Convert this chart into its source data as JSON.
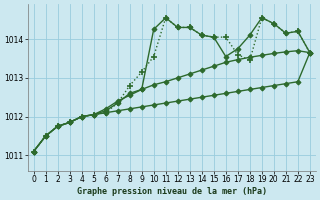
{
  "title": "Graphe pression niveau de la mer (hPa)",
  "bg_color": "#cce8f0",
  "grid_color": "#99ccdd",
  "line_color": "#2d6a2d",
  "xlim": [
    -0.5,
    23.5
  ],
  "ylim": [
    1010.6,
    1014.9
  ],
  "yticks": [
    1011,
    1012,
    1013,
    1014
  ],
  "xticks": [
    0,
    1,
    2,
    3,
    4,
    5,
    6,
    7,
    8,
    9,
    10,
    11,
    12,
    13,
    14,
    15,
    16,
    17,
    18,
    19,
    20,
    21,
    22,
    23
  ],
  "series": [
    {
      "y": [
        1011.1,
        1011.5,
        1011.75,
        1011.85,
        1012.0,
        1012.05,
        1012.1,
        1012.35,
        1012.8,
        1013.15,
        1013.55,
        1014.55,
        1014.3,
        1014.3,
        1014.1,
        1014.05,
        1014.05,
        1013.6,
        1013.45,
        1014.55,
        1014.4,
        1014.15,
        1014.2,
        1013.65
      ],
      "linestyle": "dotted",
      "marker": "+",
      "markersize": 5,
      "linewidth": 1.0,
      "markeredgewidth": 1.2
    },
    {
      "y": [
        1011.1,
        1011.5,
        1011.75,
        1011.85,
        1012.0,
        1012.05,
        1012.15,
        1012.35,
        1012.6,
        1012.7,
        1014.25,
        1014.55,
        1014.3,
        1014.3,
        1014.1,
        1014.05,
        1013.55,
        1013.75,
        1014.1,
        1014.55,
        1014.4,
        1014.15,
        1014.2,
        1013.65
      ],
      "linestyle": "solid",
      "marker": "D",
      "markersize": 2.5,
      "linewidth": 1.0,
      "markeredgewidth": 0.8
    },
    {
      "y": [
        1011.1,
        1011.5,
        1011.75,
        1011.85,
        1012.0,
        1012.05,
        1012.2,
        1012.4,
        1012.55,
        1012.7,
        1012.82,
        1012.9,
        1013.0,
        1013.1,
        1013.2,
        1013.3,
        1013.4,
        1013.47,
        1013.53,
        1013.58,
        1013.63,
        1013.67,
        1013.7,
        1013.65
      ],
      "linestyle": "solid",
      "marker": "D",
      "markersize": 2.5,
      "linewidth": 1.0,
      "markeredgewidth": 0.8
    },
    {
      "y": [
        1011.1,
        1011.5,
        1011.75,
        1011.85,
        1012.0,
        1012.05,
        1012.1,
        1012.15,
        1012.2,
        1012.25,
        1012.3,
        1012.35,
        1012.4,
        1012.45,
        1012.5,
        1012.55,
        1012.6,
        1012.65,
        1012.7,
        1012.75,
        1012.8,
        1012.85,
        1012.9,
        1013.65
      ],
      "linestyle": "solid",
      "marker": "D",
      "markersize": 2.5,
      "linewidth": 1.0,
      "markeredgewidth": 0.8
    }
  ]
}
